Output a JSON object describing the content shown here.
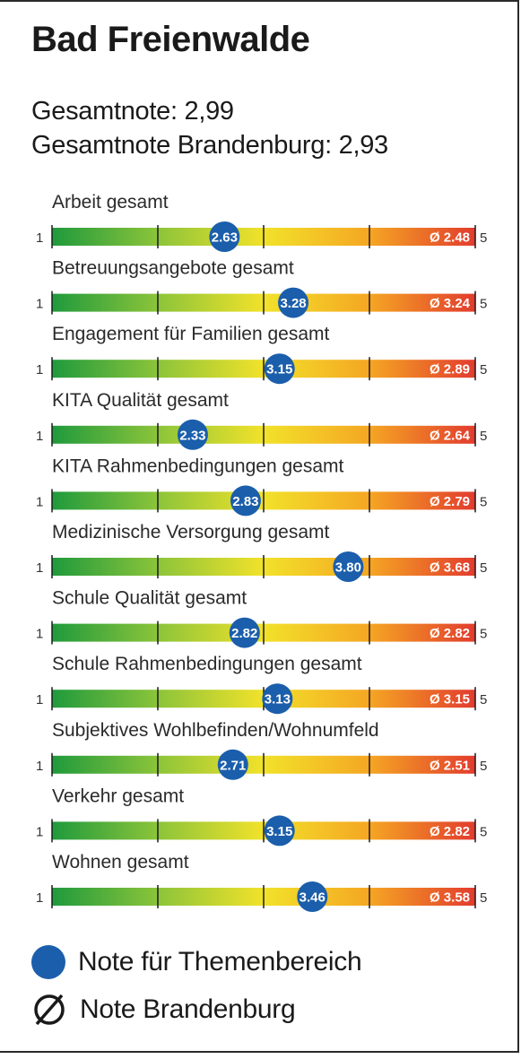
{
  "title": "Bad Freienwalde",
  "summary": {
    "overall": "Gesamtnote: 2,99",
    "overall_brandenburg": "Gesamtnote Brandenburg: 2,93"
  },
  "chart_data": {
    "type": "bar",
    "scale_min": 1,
    "scale_max": 5,
    "scale_min_label": "1",
    "scale_max_label": "5",
    "gradient_colors": [
      "#1f9a3c",
      "#8cc43a",
      "#f2e22a",
      "#f5a623",
      "#e23b2e"
    ],
    "score_marker_color": "#1b5eab",
    "average_prefix": "Ø",
    "categories": [
      {
        "label": "Arbeit gesamt",
        "score": 2.63,
        "score_label": "2.63",
        "avg": 2.48,
        "avg_label": "2.48"
      },
      {
        "label": "Betreuungsangebote gesamt",
        "score": 3.28,
        "score_label": "3.28",
        "avg": 3.24,
        "avg_label": "3.24"
      },
      {
        "label": "Engagement für Familien gesamt",
        "score": 3.15,
        "score_label": "3.15",
        "avg": 2.89,
        "avg_label": "2.89"
      },
      {
        "label": "KITA Qualität gesamt",
        "score": 2.33,
        "score_label": "2.33",
        "avg": 2.64,
        "avg_label": "2.64"
      },
      {
        "label": "KITA Rahmenbedingungen gesamt",
        "score": 2.83,
        "score_label": "2.83",
        "avg": 2.79,
        "avg_label": "2.79"
      },
      {
        "label": "Medizinische Versorgung gesamt",
        "score": 3.8,
        "score_label": "3.80",
        "avg": 3.68,
        "avg_label": "3.68"
      },
      {
        "label": "Schule Qualität gesamt",
        "score": 2.82,
        "score_label": "2.82",
        "avg": 2.82,
        "avg_label": "2.82"
      },
      {
        "label": "Schule Rahmenbedingungen gesamt",
        "score": 3.13,
        "score_label": "3.13",
        "avg": 3.15,
        "avg_label": "3.15"
      },
      {
        "label": "Subjektives Wohlbefinden/Wohnumfeld",
        "score": 2.71,
        "score_label": "2.71",
        "avg": 2.51,
        "avg_label": "2.51"
      },
      {
        "label": "Verkehr gesamt",
        "score": 3.15,
        "score_label": "3.15",
        "avg": 2.82,
        "avg_label": "2.82"
      },
      {
        "label": "Wohnen gesamt",
        "score": 3.46,
        "score_label": "3.46",
        "avg": 3.58,
        "avg_label": "3.58"
      }
    ]
  },
  "legend": {
    "score_label": "Note für Themenbereich",
    "avg_label": "Note Brandenburg"
  }
}
